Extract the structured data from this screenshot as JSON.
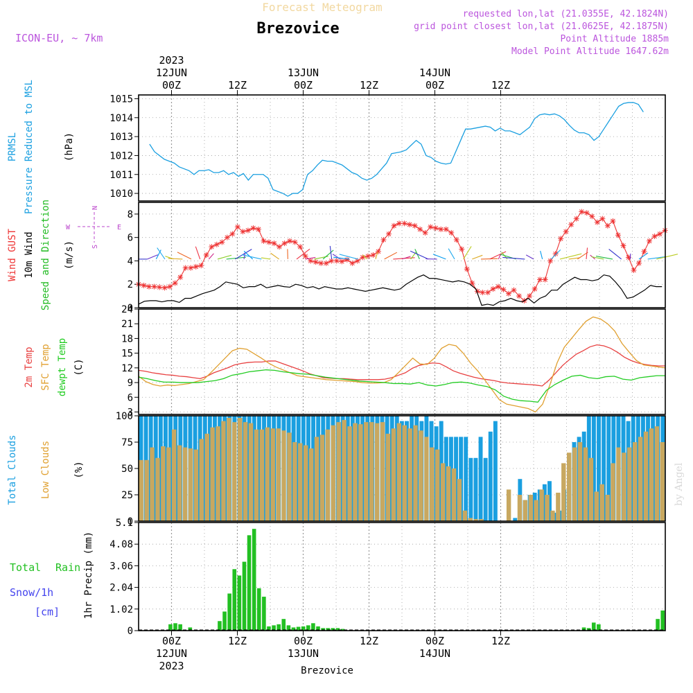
{
  "header": {
    "title_faded": "Forecast Meteogram",
    "location": "Brezovice",
    "model": "ICON-EU, ~ 7km",
    "requested": "requested lon,lat (21.0355E, 42.1824N)",
    "grid_point": "grid point closest lon,lat (21.0625E, 42.1875N)",
    "point_altitude": "Point Altitude 1885m",
    "model_altitude": "Model Point Altitude 1647.62m",
    "credit": "by Angel",
    "footer_location": "Brezovice"
  },
  "colors": {
    "pressure": "#1a9fe0",
    "gust": "#ee3333",
    "wind": "#000000",
    "direction": "#22bb22",
    "temp2m": "#e84040",
    "sfc": "#e0a030",
    "dew": "#22cc22",
    "total_cloud": "#1a9fe0",
    "low_cloud": "#c8a860",
    "rain": "#22c022",
    "snow": "#4444ee",
    "compass": "#bb44cc",
    "header": "#bb55dd"
  },
  "chart_data": [
    {
      "type": "line",
      "id": "pressure",
      "ylabel_lines": [
        "PRMSL",
        "Pressure Reduced to MSL"
      ],
      "unit": "(hPa)",
      "ylim": [
        1009.6,
        1015.2
      ],
      "yticks": [
        "1010",
        "1011",
        "1012",
        "1013",
        "1014",
        "1015"
      ],
      "x_hours_start": -6,
      "x_step_hours": 1,
      "values": [
        1012.6,
        1012.2,
        1012.0,
        1011.8,
        1011.7,
        1011.6,
        1011.4,
        1011.3,
        1011.2,
        1011.0,
        1011.2,
        1011.2,
        1011.25,
        1011.1,
        1011.1,
        1011.2,
        1011.0,
        1011.1,
        1010.9,
        1011.05,
        1010.7,
        1011.0,
        1011.0,
        1011.0,
        1010.8,
        1010.2,
        1010.1,
        1010.0,
        1009.85,
        1010.0,
        1010.0,
        1010.2,
        1011.0,
        1011.2,
        1011.5,
        1011.75,
        1011.7,
        1011.7,
        1011.6,
        1011.5,
        1011.3,
        1011.1,
        1011.0,
        1010.8,
        1010.7,
        1010.8,
        1011.0,
        1011.3,
        1011.6,
        1012.1,
        1012.15,
        1012.2,
        1012.3,
        1012.55,
        1012.8,
        1012.6,
        1012.0,
        1011.9,
        1011.7,
        1011.6,
        1011.55,
        1011.6,
        1012.2,
        1012.8,
        1013.4,
        1013.4,
        1013.45,
        1013.5,
        1013.55,
        1013.5,
        1013.3,
        1013.45,
        1013.3,
        1013.3,
        1013.2,
        1013.1,
        1013.3,
        1013.5,
        1013.95,
        1014.15,
        1014.2,
        1014.15,
        1014.2,
        1014.1,
        1013.9,
        1013.6,
        1013.35,
        1013.2,
        1013.2,
        1013.1,
        1012.8,
        1013.0,
        1013.4,
        1013.8,
        1014.2,
        1014.6,
        1014.75,
        1014.8,
        1014.8,
        1014.7,
        1014.3
      ]
    },
    {
      "type": "line",
      "id": "wind",
      "ylabel_lines": [
        "Wind GUST",
        "10m Wind",
        "Speed and Direction"
      ],
      "unit": "(m/s)",
      "ylim": [
        0,
        9
      ],
      "yticks": [
        "0",
        "2",
        "4",
        "6",
        "8"
      ],
      "compass": {
        "n": "N",
        "e": "E",
        "s": "S",
        "w": "W"
      },
      "series": [
        {
          "name": "Wind GUST",
          "values": [
            2.0,
            1.9,
            1.8,
            1.8,
            1.75,
            1.7,
            1.8,
            2.1,
            2.6,
            3.4,
            3.4,
            3.5,
            3.6,
            4.5,
            5.2,
            5.4,
            5.6,
            6.0,
            6.3,
            6.9,
            6.5,
            6.6,
            6.8,
            6.7,
            5.7,
            5.6,
            5.5,
            5.2,
            5.5,
            5.7,
            5.6,
            5.2,
            4.4,
            4.0,
            3.9,
            3.8,
            3.8,
            4.0,
            4.0,
            3.95,
            4.1,
            3.8,
            4.0,
            4.3,
            4.4,
            4.5,
            4.8,
            5.8,
            6.3,
            7.0,
            7.2,
            7.2,
            7.1,
            7.0,
            6.7,
            6.4,
            6.9,
            6.8,
            6.7,
            6.7,
            6.4,
            5.8,
            5.0,
            3.3,
            2.1,
            1.4,
            1.3,
            1.3,
            1.6,
            1.8,
            1.55,
            1.2,
            1.5,
            1.0,
            0.6,
            1.0,
            1.6,
            2.4,
            2.4,
            4.0,
            4.6,
            5.9,
            6.5,
            7.1,
            7.6,
            8.2,
            8.1,
            7.8,
            7.3,
            7.6,
            7.0,
            7.4,
            6.2,
            5.3,
            4.3,
            3.2,
            3.8,
            4.8,
            5.7,
            6.1,
            6.3,
            6.6
          ]
        },
        {
          "name": "10m Wind",
          "values": [
            0.3,
            0.55,
            0.6,
            0.6,
            0.5,
            0.6,
            0.6,
            0.45,
            0.8,
            0.8,
            1.0,
            1.2,
            1.35,
            1.5,
            1.8,
            2.2,
            2.1,
            2.0,
            1.7,
            1.8,
            1.8,
            2.0,
            1.7,
            1.8,
            1.9,
            1.8,
            1.75,
            2.0,
            1.9,
            1.7,
            1.8,
            1.6,
            1.8,
            1.7,
            1.6,
            1.6,
            1.7,
            1.6,
            1.5,
            1.4,
            1.5,
            1.6,
            1.7,
            1.6,
            1.5,
            1.6,
            2.0,
            2.3,
            2.6,
            2.8,
            2.5,
            2.5,
            2.4,
            2.3,
            2.2,
            2.3,
            2.2,
            2.0,
            1.6,
            0.2,
            0.3,
            0.2,
            0.5,
            0.6,
            0.8,
            0.6,
            0.5,
            0.8,
            0.4,
            0.8,
            1.0,
            1.5,
            1.5,
            2.0,
            2.3,
            2.6,
            2.4,
            2.4,
            2.3,
            2.4,
            2.8,
            2.7,
            2.2,
            1.6,
            0.8,
            0.9,
            1.2,
            1.5,
            1.9,
            1.8,
            1.8
          ]
        }
      ]
    },
    {
      "type": "line",
      "id": "temperature",
      "ylabel_lines": [
        "2m Temp",
        "SFC Temp",
        "dewpt Temp"
      ],
      "unit": "(C)",
      "ylim": [
        2.5,
        24
      ],
      "yticks": [
        "3",
        "6",
        "9",
        "12",
        "15",
        "18",
        "21",
        "24"
      ],
      "series": [
        {
          "name": "2m Temp",
          "values": [
            11.5,
            11.3,
            11.0,
            10.8,
            10.6,
            10.5,
            10.3,
            10.2,
            10.0,
            9.8,
            10.3,
            11.0,
            11.5,
            12.0,
            12.6,
            12.9,
            13.1,
            13.2,
            13.2,
            13.4,
            13.4,
            12.9,
            12.4,
            11.9,
            11.4,
            10.8,
            10.4,
            10.0,
            9.9,
            9.8,
            9.8,
            9.7,
            9.6,
            9.6,
            9.6,
            9.6,
            9.7,
            10.0,
            10.5,
            11.0,
            11.9,
            12.5,
            12.8,
            13.0,
            12.9,
            12.2,
            11.4,
            10.9,
            10.5,
            10.1,
            9.8,
            9.6,
            9.4,
            9.1,
            8.9,
            8.8,
            8.7,
            8.6,
            8.5,
            8.3,
            9.5,
            11.0,
            12.5,
            13.7,
            14.8,
            15.5,
            16.3,
            16.7,
            16.5,
            16.0,
            15.2,
            14.2,
            13.5,
            13.0,
            12.7,
            12.5,
            12.4,
            12.4
          ]
        },
        {
          "name": "SFC Temp",
          "values": [
            10.3,
            9.2,
            8.6,
            8.3,
            8.5,
            8.4,
            8.6,
            8.8,
            9.2,
            9.6,
            11.0,
            12.5,
            14.0,
            15.5,
            16.0,
            15.8,
            14.9,
            14.0,
            13.0,
            12.2,
            11.6,
            11.0,
            10.4,
            10.2,
            10.0,
            9.8,
            9.6,
            9.5,
            9.4,
            9.3,
            9.2,
            9.0,
            8.9,
            8.9,
            9.0,
            9.6,
            11.0,
            12.5,
            14.0,
            12.8,
            12.7,
            14.0,
            16.0,
            16.8,
            16.5,
            15.0,
            13.0,
            11.4,
            9.5,
            7.5,
            5.5,
            4.6,
            4.3,
            4.0,
            3.7,
            3.0,
            4.6,
            8.5,
            13.0,
            16.2,
            18.0,
            19.8,
            21.5,
            22.4,
            22.0,
            21.0,
            19.5,
            17.0,
            15.2,
            13.5,
            12.6,
            12.4,
            12.2,
            12.0
          ]
        },
        {
          "name": "dewpt Temp",
          "values": [
            10.1,
            9.8,
            9.4,
            9.1,
            9.1,
            9.0,
            9.0,
            9.0,
            9.2,
            9.4,
            9.8,
            10.5,
            10.8,
            11.2,
            11.4,
            11.6,
            11.5,
            11.2,
            11.0,
            10.8,
            10.7,
            10.4,
            10.1,
            9.9,
            9.7,
            9.5,
            9.3,
            9.2,
            9.1,
            9.0,
            8.8,
            8.8,
            8.7,
            9.0,
            8.5,
            8.3,
            8.6,
            9.0,
            9.1,
            8.9,
            8.5,
            8.2,
            7.5,
            6.2,
            5.6,
            5.3,
            5.2,
            5.0,
            7.4,
            8.6,
            9.5,
            10.3,
            10.5,
            10.0,
            9.8,
            10.2,
            10.3,
            9.7,
            9.5,
            10.0,
            10.2,
            10.4,
            10.4
          ]
        }
      ]
    },
    {
      "type": "bar",
      "id": "clouds",
      "ylabel_lines": [
        "Total Clouds",
        "Low Clouds"
      ],
      "unit": "(%)",
      "ylim": [
        0,
        100
      ],
      "yticks": [
        "0",
        "25",
        "50",
        "75",
        "100"
      ],
      "series": [
        {
          "name": "Total Clouds",
          "values": [
            100,
            100,
            100,
            100,
            100,
            100,
            100,
            100,
            100,
            100,
            100,
            100,
            100,
            100,
            100,
            100,
            100,
            100,
            100,
            100,
            100,
            100,
            100,
            100,
            100,
            100,
            100,
            100,
            100,
            100,
            100,
            100,
            100,
            100,
            100,
            100,
            100,
            100,
            100,
            100,
            100,
            100,
            100,
            100,
            100,
            100,
            100,
            100,
            100,
            100,
            100,
            100,
            100,
            95,
            95,
            100,
            100,
            95,
            100,
            95,
            90,
            95,
            80,
            80,
            80,
            80,
            80,
            60,
            60,
            80,
            60,
            85,
            95,
            0,
            0,
            0,
            3,
            40,
            20,
            25,
            27,
            30,
            35,
            38,
            8,
            10,
            30,
            50,
            75,
            80,
            85,
            100,
            100,
            100,
            100,
            100,
            100,
            100,
            100,
            95,
            100,
            100,
            100,
            100,
            100,
            100,
            100
          ]
        },
        {
          "name": "Low Clouds",
          "values": [
            58,
            58,
            70,
            60,
            71,
            70,
            87,
            72,
            70,
            69,
            68,
            78,
            83,
            89,
            90,
            95,
            98,
            94,
            98,
            94,
            93,
            87,
            87,
            89,
            88,
            88,
            86,
            84,
            75,
            74,
            72,
            69,
            80,
            82,
            87,
            91,
            94,
            96,
            90,
            93,
            92,
            94,
            94,
            93,
            94,
            83,
            88,
            93,
            91,
            88,
            91,
            86,
            80,
            70,
            68,
            55,
            52,
            50,
            40,
            10,
            3,
            2,
            2,
            0,
            0,
            0,
            0,
            30,
            0,
            25,
            20,
            25,
            20,
            30,
            25,
            10,
            27,
            55,
            65,
            70,
            75,
            70,
            60,
            28,
            35,
            25,
            55,
            70,
            65,
            70,
            75,
            80,
            85,
            88,
            90,
            75
          ]
        }
      ]
    },
    {
      "type": "bar",
      "id": "precip",
      "ylabel_lines": [
        "1hr Precip (mm)"
      ],
      "side_labels": {
        "total": "Total",
        "rain": "Rain",
        "snow": "Snow/1h",
        "unit": "[cm]"
      },
      "ylim": [
        0,
        5.1
      ],
      "yticks": [
        "0",
        "1.02",
        "2.04",
        "3.06",
        "4.08",
        "5.1"
      ],
      "series": [
        {
          "name": "Rain",
          "values": [
            0,
            0,
            0,
            0,
            0,
            0,
            0.3,
            0.35,
            0.3,
            0,
            0.15,
            0,
            0,
            0,
            0,
            0,
            0.45,
            0.9,
            1.75,
            2.9,
            2.6,
            3.25,
            4.5,
            4.8,
            2.0,
            1.6,
            0.2,
            0.25,
            0.3,
            0.55,
            0.25,
            0.15,
            0.18,
            0.2,
            0.25,
            0.35,
            0.2,
            0.12,
            0.12,
            0.12,
            0.12,
            0.08,
            0,
            0,
            0,
            0,
            0,
            0,
            0,
            0,
            0,
            0,
            0,
            0,
            0,
            0,
            0,
            0,
            0,
            0,
            0,
            0,
            0,
            0,
            0,
            0,
            0,
            0,
            0,
            0,
            0,
            0,
            0,
            0,
            0,
            0,
            0,
            0,
            0,
            0,
            0,
            0,
            0,
            0,
            0,
            0,
            0,
            0,
            0,
            0,
            0.15,
            0.12,
            0.38,
            0.3,
            0,
            0,
            0,
            0,
            0,
            0,
            0,
            0,
            0,
            0,
            0,
            0.55,
            0.95
          ]
        }
      ]
    }
  ],
  "xaxis": {
    "top": [
      {
        "label": "00Z",
        "sub": "12JUN",
        "year": "2023"
      },
      {
        "label": "12Z"
      },
      {
        "label": "00Z",
        "sub": "13JUN"
      },
      {
        "label": "12Z"
      },
      {
        "label": "00Z",
        "sub": "14JUN"
      },
      {
        "label": "12Z"
      }
    ],
    "bottom": [
      {
        "label": "00Z",
        "sub": "12JUN",
        "year": "2023"
      },
      {
        "label": "12Z"
      },
      {
        "label": "00Z",
        "sub": "13JUN"
      },
      {
        "label": "12Z"
      },
      {
        "label": "00Z",
        "sub": "14JUN"
      },
      {
        "label": "12Z"
      }
    ]
  }
}
